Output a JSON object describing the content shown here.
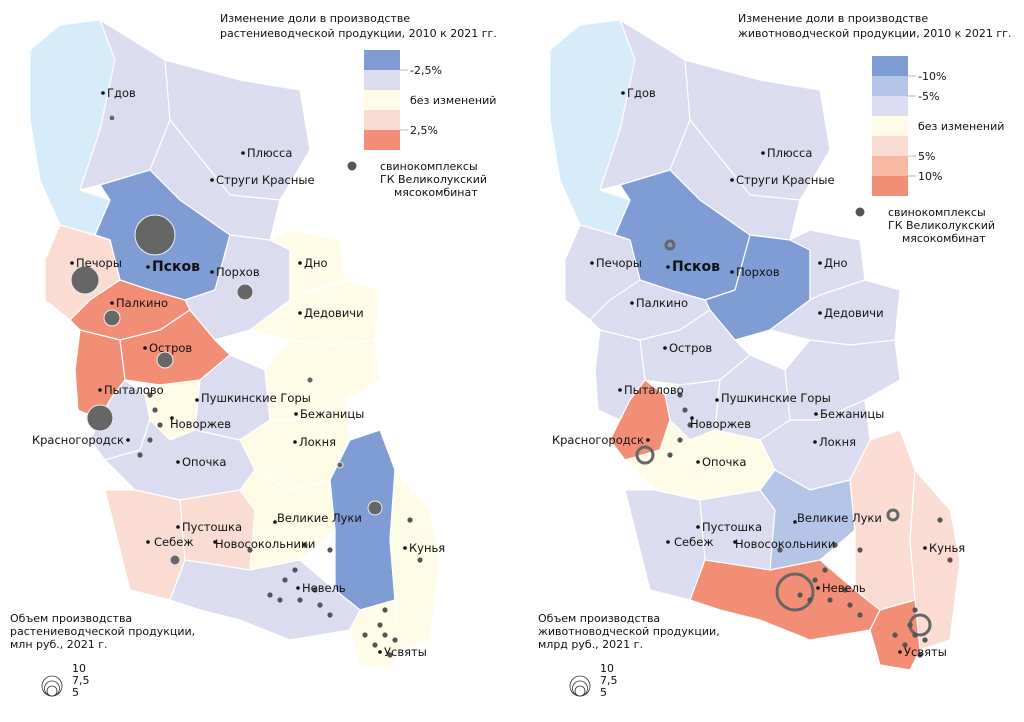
{
  "colors": {
    "dec10": "#7f9dd4",
    "dec5": "#b5c5e8",
    "dec": "#dcdcf0",
    "none": "#fefbe6",
    "inc": "#fadcd2",
    "inc5": "#f7b9a4",
    "inc10": "#f28e76",
    "lake": "#d6ecfa",
    "farm": "#555555",
    "volume": "#666666"
  },
  "maps": [
    {
      "title": [
        "Изменение доли в производстве",
        "растениеводческой продукции, 2010 к 2021 гг."
      ],
      "legend": [
        {
          "color": "dec10",
          "label": ""
        },
        {
          "color": "dec",
          "label": "-2,5%"
        },
        {
          "color": "none",
          "label": "без изменений"
        },
        {
          "color": "inc",
          "label": "2,5%"
        },
        {
          "color": "inc10",
          "label": ""
        }
      ],
      "farm_legend": [
        "свинокомплексы",
        "ГК Великолукский",
        "мясокомбинат"
      ],
      "volume_legend": {
        "title": [
          "Объем производства",
          "растениеводческой продукции,",
          "млн руб., 2021 г."
        ],
        "sizes": [
          "10",
          "7,5",
          "5"
        ]
      },
      "districts": {
        "gdov": "dec",
        "plyussa": "dec",
        "strugi": "dec",
        "pskov": "dec10",
        "pechory": "inc",
        "porkhov": "dec",
        "dno": "none",
        "dedovichi": "none",
        "palkino": "inc10",
        "ostrov": "inc10",
        "pytalovo": "inc10",
        "novorzhev": "none",
        "pushgory": "dec",
        "bezhanitsy": "none",
        "loknya": "none",
        "krasnogorodsk": "dec",
        "opochka": "dec",
        "sebezh": "inc",
        "pustoshka": "inc",
        "novosokolniki": "none",
        "velikoluksky": "dec10",
        "kunya": "none",
        "nevel": "dec",
        "usvyaty": "none"
      },
      "cities": [
        "Гдов",
        "Плюсса",
        "Струги Красные",
        "Псков",
        "Печоры",
        "Порхов",
        "Дно",
        "Дедовичи",
        "Палкино",
        "Остров",
        "Пыталово",
        "Новоржев",
        "Пушкинские Горы",
        "Бежаницы",
        "Локня",
        "Красногородск",
        "Опочка",
        "Пустошка",
        "Себеж",
        "Новосокольники",
        "Великие Луки",
        "Кунья",
        "Невель",
        "Усвяты"
      ]
    },
    {
      "title": [
        "Изменение доли в производстве",
        "животноводческой продукции, 2010 к 2021 гг."
      ],
      "legend": [
        {
          "color": "dec10",
          "label": ""
        },
        {
          "color": "dec5",
          "label": "-10%"
        },
        {
          "color": "dec",
          "label": "-5%"
        },
        {
          "color": "none",
          "label": "без изменений"
        },
        {
          "color": "inc",
          "label": ""
        },
        {
          "color": "inc5",
          "label": "5%"
        },
        {
          "color": "inc10",
          "label": "10%"
        }
      ],
      "farm_legend": [
        "свинокомплексы",
        "ГК Великолукский",
        "мясокомбинат"
      ],
      "volume_legend": {
        "title": [
          "Объем производства",
          "животноводческой продукции,",
          "млрд руб., 2021 г."
        ],
        "sizes": [
          "10",
          "7,5",
          "5"
        ]
      },
      "districts": {
        "gdov": "dec",
        "plyussa": "dec",
        "strugi": "dec",
        "pskov": "dec10",
        "pechory": "dec",
        "porkhov": "dec10",
        "dno": "dec",
        "dedovichi": "dec",
        "palkino": "dec",
        "ostrov": "dec",
        "pytalovo": "dec",
        "novorzhev": "dec",
        "pushgory": "dec",
        "bezhanitsy": "dec",
        "loknya": "dec",
        "krasnogorodsk": "inc10",
        "opochka": "none",
        "sebezh": "dec",
        "pustoshka": "dec",
        "novosokolniki": "dec5",
        "velikoluksky": "inc",
        "kunya": "inc",
        "nevel": "inc10",
        "usvyaty": "inc10"
      },
      "cities": [
        "Гдов",
        "Плюсса",
        "Струги Красные",
        "Псков",
        "Печоры",
        "Порхов",
        "Дно",
        "Дедовичи",
        "Палкино",
        "Остров",
        "Пыталово",
        "Новоржев",
        "Пушкинские Горы",
        "Бежаницы",
        "Локня",
        "Красногородск",
        "Опочка",
        "Пустошка",
        "Себеж",
        "Новосокольники",
        "Великие Луки",
        "Кунья",
        "Невель",
        "Усвяты"
      ]
    }
  ]
}
